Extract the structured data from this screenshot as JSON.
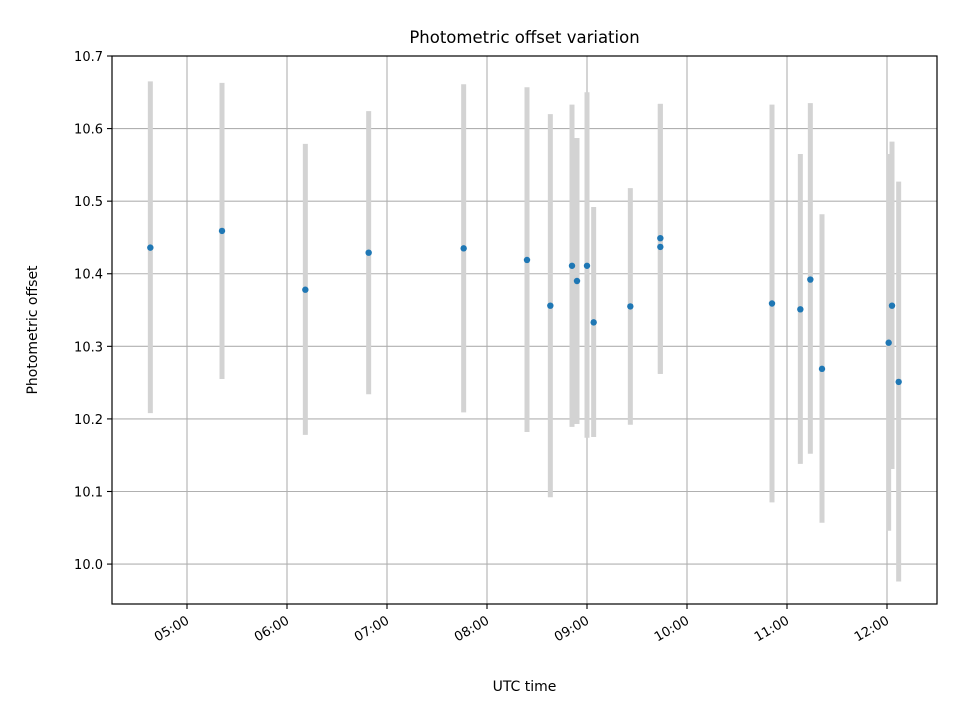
{
  "chart_data": {
    "type": "scatter",
    "title": "Photometric offset variation",
    "xlabel": "UTC time",
    "ylabel": "Photometric offset",
    "x_axis_type": "time",
    "xlim": [
      "04:15",
      "12:30"
    ],
    "ylim": [
      9.945,
      10.7
    ],
    "xticks": [
      "05:00",
      "06:00",
      "07:00",
      "08:00",
      "09:00",
      "10:00",
      "11:00",
      "12:00"
    ],
    "xtick_label_rotation": "30 degrees",
    "yticks": [
      10.0,
      10.1,
      10.2,
      10.3,
      10.4,
      10.5,
      10.6,
      10.7
    ],
    "yticklabels": [
      "10.0",
      "10.1",
      "10.2",
      "10.3",
      "10.4",
      "10.5",
      "10.6",
      "10.7"
    ],
    "grid": true,
    "legend": "none",
    "marker_color": "#1f77b4",
    "errorbar_color": "#d3d3d3",
    "series": [
      {
        "points": [
          {
            "x": "04:38",
            "y": 10.436,
            "ylow": 10.208,
            "yhigh": 10.665
          },
          {
            "x": "05:21",
            "y": 10.459,
            "ylow": 10.255,
            "yhigh": 10.663
          },
          {
            "x": "06:11",
            "y": 10.378,
            "ylow": 10.178,
            "yhigh": 10.579
          },
          {
            "x": "06:49",
            "y": 10.429,
            "ylow": 10.234,
            "yhigh": 10.624
          },
          {
            "x": "07:46",
            "y": 10.435,
            "ylow": 10.209,
            "yhigh": 10.661
          },
          {
            "x": "08:24",
            "y": 10.419,
            "ylow": 10.182,
            "yhigh": 10.657
          },
          {
            "x": "08:38",
            "y": 10.356,
            "ylow": 10.092,
            "yhigh": 10.62
          },
          {
            "x": "08:51",
            "y": 10.411,
            "ylow": 10.189,
            "yhigh": 10.633
          },
          {
            "x": "08:54",
            "y": 10.39,
            "ylow": 10.193,
            "yhigh": 10.587
          },
          {
            "x": "09:00",
            "y": 10.411,
            "ylow": 10.174,
            "yhigh": 10.65
          },
          {
            "x": "09:04",
            "y": 10.333,
            "ylow": 10.175,
            "yhigh": 10.492
          },
          {
            "x": "09:26",
            "y": 10.355,
            "ylow": 10.192,
            "yhigh": 10.518
          },
          {
            "x": "09:44",
            "y": 10.449,
            "ylow": 10.262,
            "yhigh": 10.634
          },
          {
            "x": "09:44",
            "y": 10.437,
            "ylow": 10.262,
            "yhigh": 10.634
          },
          {
            "x": "10:51",
            "y": 10.359,
            "ylow": 10.085,
            "yhigh": 10.633
          },
          {
            "x": "11:08",
            "y": 10.351,
            "ylow": 10.138,
            "yhigh": 10.565
          },
          {
            "x": "11:14",
            "y": 10.392,
            "ylow": 10.152,
            "yhigh": 10.635
          },
          {
            "x": "11:21",
            "y": 10.269,
            "ylow": 10.057,
            "yhigh": 10.482
          },
          {
            "x": "12:01",
            "y": 10.305,
            "ylow": 10.046,
            "yhigh": 10.565
          },
          {
            "x": "12:03",
            "y": 10.356,
            "ylow": 10.131,
            "yhigh": 10.582
          },
          {
            "x": "12:07",
            "y": 10.251,
            "ylow": 9.976,
            "yhigh": 10.527
          }
        ]
      }
    ]
  }
}
